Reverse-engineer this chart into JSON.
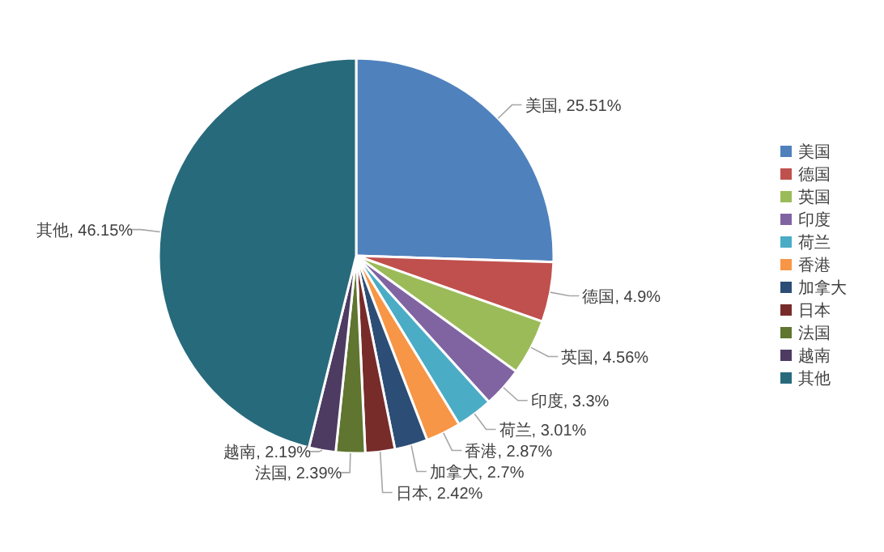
{
  "chart_data": {
    "type": "pie",
    "categories": [
      "美国",
      "德国",
      "英国",
      "印度",
      "荷兰",
      "香港",
      "加拿大",
      "日本",
      "法国",
      "越南",
      "其他"
    ],
    "values": [
      25.51,
      4.9,
      4.56,
      3.3,
      3.01,
      2.87,
      2.7,
      2.42,
      2.39,
      2.19,
      46.15
    ],
    "value_labels": [
      ", 25.51%",
      ", 4.9%",
      ", 4.56%",
      ", 3.3%",
      ", 3.01%",
      ", 2.87%",
      ", 2.7%",
      ", 2.42%",
      ", 2.39%",
      ", 2.19%",
      ", 46.15%"
    ],
    "colors": [
      "#4f81bd",
      "#c0504d",
      "#9bbb59",
      "#8064a2",
      "#4bacc6",
      "#f79646",
      "#2c4d75",
      "#772c2a",
      "#5f7530",
      "#4d3b62",
      "#276a7c"
    ],
    "legend": "right"
  }
}
